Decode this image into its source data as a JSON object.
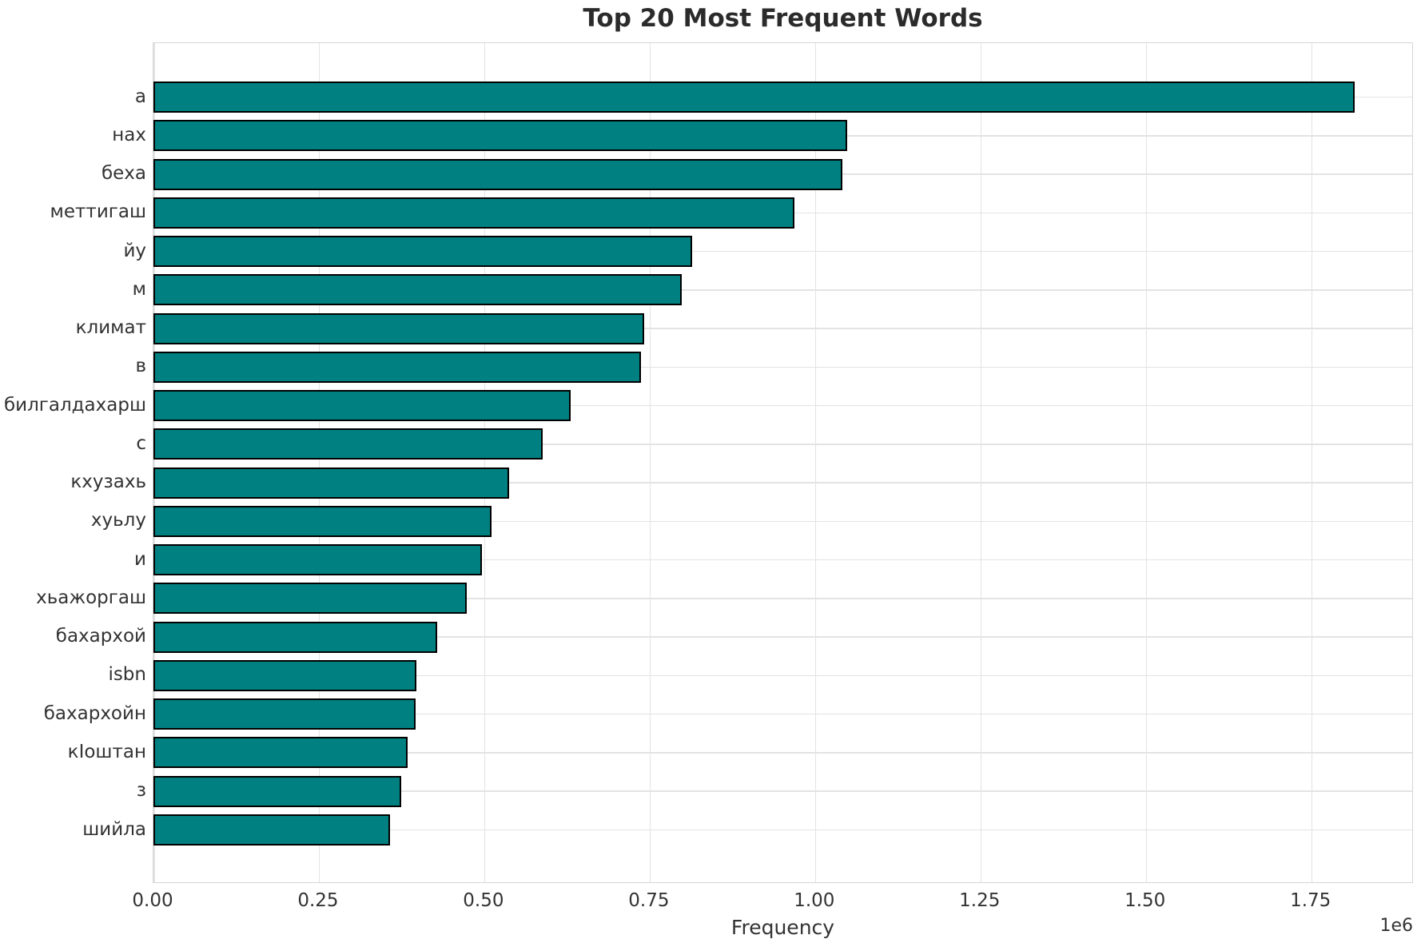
{
  "title": "Top 20 Most Frequent Words",
  "chart_data": {
    "type": "bar",
    "orientation": "horizontal",
    "title": "Top 20 Most Frequent Words",
    "xlabel": "Frequency",
    "ylabel": "",
    "offset_text": "1e6",
    "xlim": [
      0,
      1905000
    ],
    "x_ticks": [
      0,
      250000,
      500000,
      750000,
      1000000,
      1250000,
      1500000,
      1750000
    ],
    "x_tick_labels": [
      "0.00",
      "0.25",
      "0.50",
      "0.75",
      "1.00",
      "1.25",
      "1.50",
      "1.75"
    ],
    "grid": true,
    "legend": false,
    "categories": [
      "а",
      "нах",
      "беха",
      "меттигаш",
      "йу",
      "м",
      "климат",
      "в",
      "билгалдахарш",
      "с",
      "кхузахь",
      "хуьлу",
      "и",
      "хьажоргаш",
      "бахархой",
      "isbn",
      "бахархойн",
      "кIоштан",
      "з",
      "шийла"
    ],
    "values": [
      1816000,
      1048000,
      1041000,
      969000,
      814000,
      798000,
      742000,
      737000,
      630000,
      588000,
      537000,
      511000,
      496000,
      473000,
      429000,
      397000,
      396000,
      384000,
      374000,
      357000
    ],
    "bar_color": "#008080",
    "bar_edge_color": "#000000",
    "grid_color": "#e3e3e3",
    "text_color": "#333333"
  }
}
